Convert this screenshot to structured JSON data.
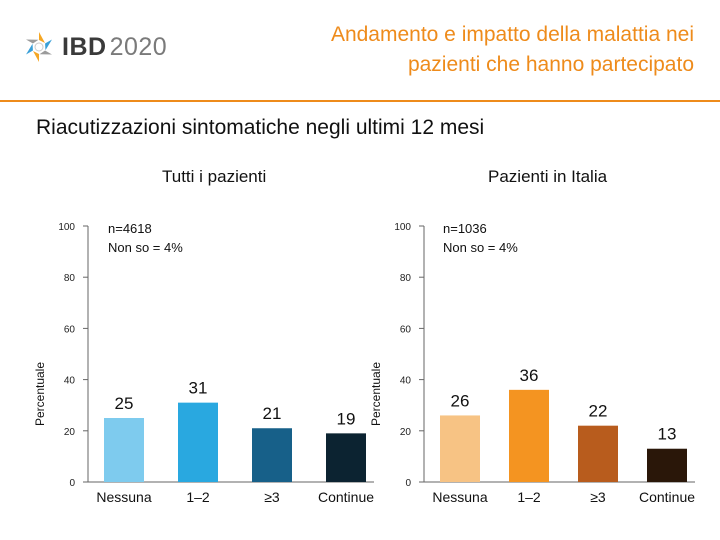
{
  "header": {
    "logo_main": "IBD",
    "logo_year": "2020",
    "title_line1": "Andamento e impatto della malattia nei",
    "title_line2": "pazienti che hanno partecipato"
  },
  "subtitle": "Riacutizzazioni sintomatiche negli ultimi 12 mesi",
  "chart_data": [
    {
      "type": "bar",
      "title": "Tutti i pazienti",
      "ylabel": "Percentuale",
      "xlabel": "",
      "ylim": [
        0,
        100
      ],
      "yticks": [
        0,
        20,
        40,
        60,
        80,
        100
      ],
      "categories": [
        "Nessuna",
        "1–2",
        "≥3",
        "Continue"
      ],
      "values": [
        25,
        31,
        21,
        19
      ],
      "colors": [
        "#7ecbee",
        "#29a8e0",
        "#176089",
        "#0c2331"
      ],
      "note_n": "n=4618",
      "note_unknown": "Non so = 4%"
    },
    {
      "type": "bar",
      "title": "Pazienti in Italia",
      "ylabel": "Percentuale",
      "xlabel": "",
      "ylim": [
        0,
        100
      ],
      "yticks": [
        0,
        20,
        40,
        60,
        80,
        100
      ],
      "categories": [
        "Nessuna",
        "1–2",
        "≥3",
        "Continue"
      ],
      "values": [
        26,
        36,
        22,
        13
      ],
      "colors": [
        "#f7c384",
        "#f49421",
        "#b85c1d",
        "#2a1709"
      ],
      "note_n": "n=1036",
      "note_unknown": "Non so = 4%"
    }
  ]
}
